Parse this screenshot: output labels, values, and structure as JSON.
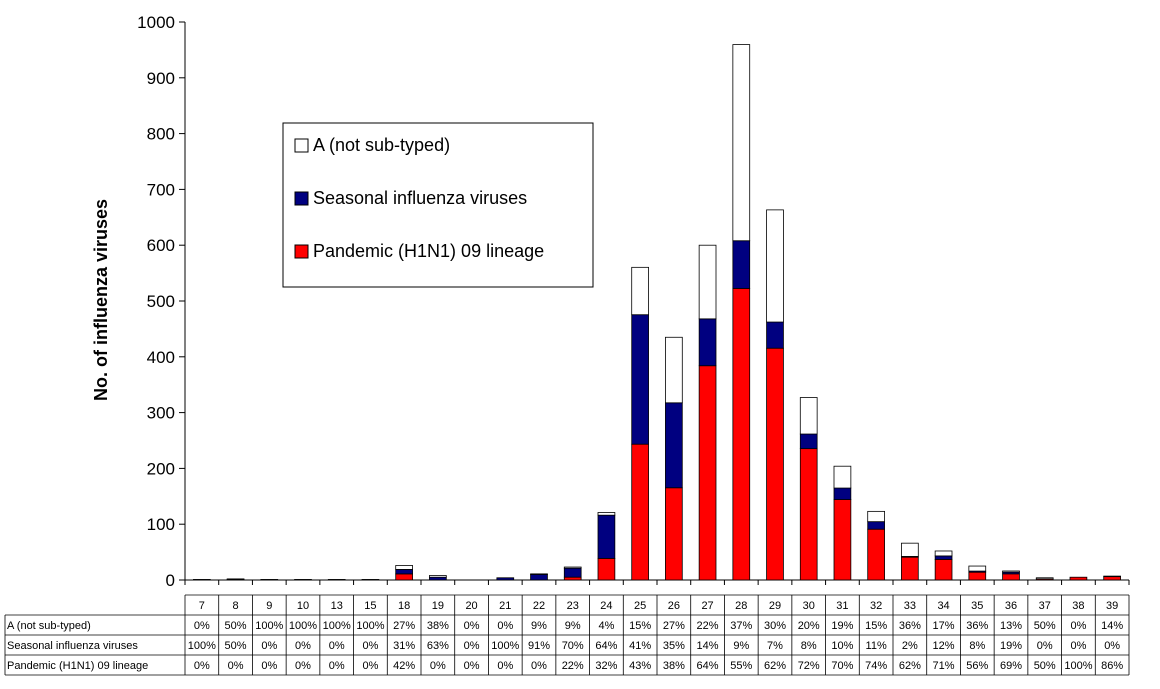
{
  "chart_data": {
    "type": "bar",
    "stacked": true,
    "categories": [
      "7",
      "8",
      "9",
      "10",
      "13",
      "15",
      "18",
      "19",
      "20",
      "21",
      "22",
      "23",
      "24",
      "25",
      "26",
      "27",
      "28",
      "29",
      "30",
      "31",
      "32",
      "33",
      "34",
      "35",
      "36",
      "37",
      "38",
      "39"
    ],
    "totals": [
      1,
      2,
      1,
      1,
      1,
      1,
      26,
      8,
      0,
      4,
      11,
      23,
      121,
      566,
      435,
      600,
      950,
      670,
      327,
      206,
      123,
      66,
      52,
      25,
      16,
      4,
      5,
      7
    ],
    "series": [
      {
        "name": "Pandemic (H1N1) 09 lineage",
        "color": "#ff0000",
        "stack_order": 0,
        "percent": [
          "0%",
          "0%",
          "0%",
          "0%",
          "0%",
          "0%",
          "42%",
          "0%",
          "0%",
          "0%",
          "0%",
          "22%",
          "32%",
          "43%",
          "38%",
          "64%",
          "55%",
          "62%",
          "72%",
          "70%",
          "74%",
          "62%",
          "71%",
          "56%",
          "69%",
          "50%",
          "100%",
          "86%"
        ]
      },
      {
        "name": "Seasonal influenza viruses",
        "color": "#000080",
        "stack_order": 1,
        "percent": [
          "100%",
          "50%",
          "0%",
          "0%",
          "0%",
          "0%",
          "31%",
          "63%",
          "0%",
          "100%",
          "91%",
          "70%",
          "64%",
          "41%",
          "35%",
          "14%",
          "9%",
          "7%",
          "8%",
          "10%",
          "11%",
          "2%",
          "12%",
          "8%",
          "19%",
          "0%",
          "0%",
          "0%"
        ]
      },
      {
        "name": "A (not sub-typed)",
        "color": "#ffffff",
        "stack_order": 2,
        "percent": [
          "0%",
          "50%",
          "100%",
          "100%",
          "100%",
          "100%",
          "27%",
          "38%",
          "0%",
          "0%",
          "9%",
          "9%",
          "4%",
          "15%",
          "27%",
          "22%",
          "37%",
          "30%",
          "20%",
          "19%",
          "15%",
          "36%",
          "17%",
          "36%",
          "13%",
          "50%",
          "0%",
          "14%"
        ]
      }
    ],
    "ylabel": "No. of influenza viruses",
    "ylim": [
      0,
      1000
    ],
    "yticks": [
      0,
      100,
      200,
      300,
      400,
      500,
      600,
      700,
      800,
      900,
      1000
    ],
    "legend": {
      "placement": "upper-middle",
      "entries": [
        "A (not sub-typed)",
        "Seasonal influenza viruses",
        "Pandemic (H1N1) 09 lineage"
      ]
    },
    "data_table": {
      "header": [
        "7",
        "8",
        "9",
        "10",
        "13",
        "15",
        "18",
        "19",
        "20",
        "21",
        "22",
        "23",
        "24",
        "25",
        "26",
        "27",
        "28",
        "29",
        "30",
        "31",
        "32",
        "33",
        "34",
        "35",
        "36",
        "37",
        "38",
        "39"
      ],
      "row_labels": [
        "A (not sub-typed)",
        "Seasonal influenza viruses",
        "Pandemic (H1N1) 09 lineage"
      ]
    }
  }
}
